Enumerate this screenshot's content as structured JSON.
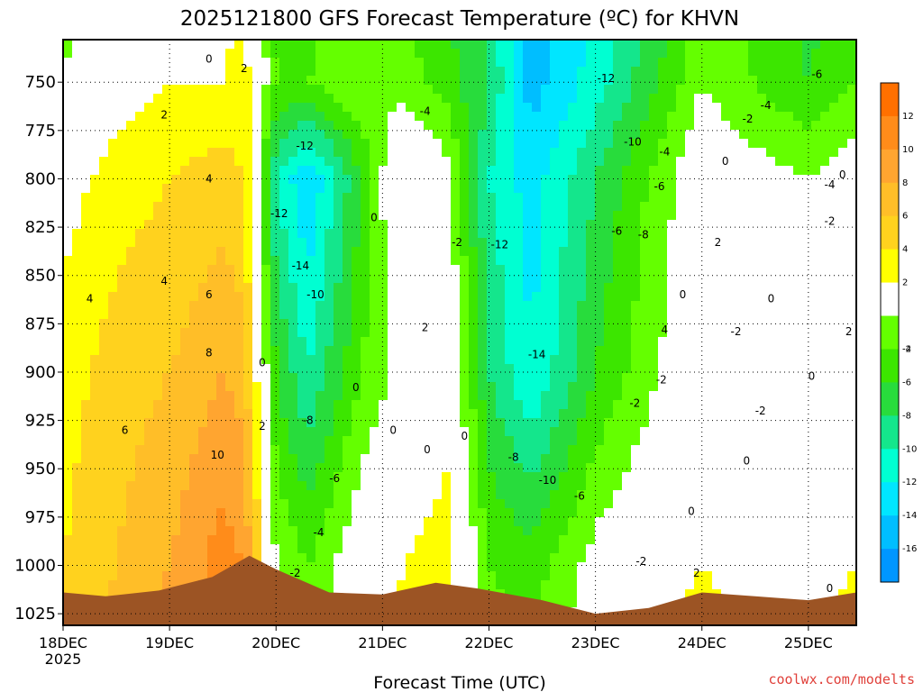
{
  "chart_data": {
    "type": "heatmap",
    "title": "2025121800 GFS Forecast Temperature (ºC) for KHVN",
    "xlabel": "Forecast Time (UTC)",
    "ylabel": "",
    "credit": "coolwx.com/modelts",
    "x_ticks": [
      {
        "label": "18DEC",
        "sub": "2025",
        "day": 0
      },
      {
        "label": "19DEC",
        "sub": "",
        "day": 1
      },
      {
        "label": "20DEC",
        "sub": "",
        "day": 2
      },
      {
        "label": "21DEC",
        "sub": "",
        "day": 3
      },
      {
        "label": "22DEC",
        "sub": "",
        "day": 4
      },
      {
        "label": "23DEC",
        "sub": "",
        "day": 5
      },
      {
        "label": "24DEC",
        "sub": "",
        "day": 6
      },
      {
        "label": "25DEC",
        "sub": "",
        "day": 7
      }
    ],
    "xlim_days": [
      0,
      7.45
    ],
    "y_ticks": [
      750,
      775,
      800,
      825,
      850,
      875,
      900,
      925,
      950,
      975,
      1000,
      1025
    ],
    "ylim": [
      728,
      1031
    ],
    "y_inverted": true,
    "colorbar": {
      "labels": [
        12,
        10,
        8,
        6,
        4,
        2,
        -2,
        -4,
        -6,
        -8,
        -10,
        -12,
        -14,
        -16
      ],
      "bands": [
        {
          "lo": 12,
          "hi": 14,
          "color": "#ff7000"
        },
        {
          "lo": 10,
          "hi": 12,
          "color": "#ff8c1a"
        },
        {
          "lo": 8,
          "hi": 10,
          "color": "#ffa530"
        },
        {
          "lo": 6,
          "hi": 8,
          "color": "#ffbe28"
        },
        {
          "lo": 4,
          "hi": 6,
          "color": "#ffd21e"
        },
        {
          "lo": 2,
          "hi": 4,
          "color": "#ffff00"
        },
        {
          "lo": -2,
          "hi": 2,
          "color": "#ffffff"
        },
        {
          "lo": -4,
          "hi": -2,
          "color": "#64ff00"
        },
        {
          "lo": -6,
          "hi": -4,
          "color": "#3ce600"
        },
        {
          "lo": -8,
          "hi": -6,
          "color": "#28dc3c"
        },
        {
          "lo": -10,
          "hi": -8,
          "color": "#14e68c"
        },
        {
          "lo": -12,
          "hi": -10,
          "color": "#00ffd2"
        },
        {
          "lo": -14,
          "hi": -12,
          "color": "#00e6ff"
        },
        {
          "lo": -16,
          "hi": -14,
          "color": "#00beff"
        },
        {
          "lo": -18,
          "hi": -16,
          "color": "#0096ff"
        }
      ]
    },
    "terrain_color": "#9c5424",
    "temperature_profile": [
      {
        "day": 0.0,
        "t1000": 4,
        "t900": 3,
        "t800": 1,
        "t750": -2
      },
      {
        "day": 0.5,
        "t1000": 6,
        "t900": 5,
        "t800": 3,
        "t750": 1
      },
      {
        "day": 1.0,
        "t1000": 8,
        "t900": 6,
        "t800": 4,
        "t750": 2
      },
      {
        "day": 1.5,
        "t1000": 11,
        "t900": 8,
        "t800": 5,
        "t750": 2
      },
      {
        "day": 1.7,
        "t1000": 10,
        "t900": 7,
        "t800": 4,
        "t750": 3
      },
      {
        "day": 2.0,
        "t1000": -2,
        "t900": -6,
        "t800": -10,
        "t750": -4
      },
      {
        "day": 2.3,
        "t1000": -4,
        "t900": -10,
        "t800": -14,
        "t750": -4
      },
      {
        "day": 2.8,
        "t1000": 0,
        "t900": -4,
        "t800": -6,
        "t750": -2
      },
      {
        "day": 3.2,
        "t1000": 2,
        "t900": -1,
        "t800": 2,
        "t750": -3
      },
      {
        "day": 3.6,
        "t1000": 3,
        "t900": 1,
        "t800": -1,
        "t750": -5
      },
      {
        "day": 4.0,
        "t1000": -4,
        "t900": -8,
        "t800": -10,
        "t750": -8
      },
      {
        "day": 4.4,
        "t1000": -5,
        "t900": -12,
        "t800": -13,
        "t750": -15
      },
      {
        "day": 5.0,
        "t1000": -1,
        "t900": -6,
        "t800": -8,
        "t750": -11
      },
      {
        "day": 5.6,
        "t1000": 1,
        "t900": -2,
        "t800": -3,
        "t750": -6
      },
      {
        "day": 6.0,
        "t1000": 2,
        "t900": 0,
        "t800": 0,
        "t750": -2
      },
      {
        "day": 6.5,
        "t1000": 1,
        "t900": -2,
        "t800": -1,
        "t750": -4
      },
      {
        "day": 7.0,
        "t1000": 1,
        "t900": -1,
        "t800": -2,
        "t750": -6
      },
      {
        "day": 7.45,
        "t1000": 2,
        "t900": 0,
        "t800": 0,
        "t750": -4
      }
    ],
    "surface_pressure": [
      {
        "day": 0.0,
        "p": 1014
      },
      {
        "day": 0.4,
        "p": 1016
      },
      {
        "day": 0.9,
        "p": 1013
      },
      {
        "day": 1.4,
        "p": 1006
      },
      {
        "day": 1.75,
        "p": 995
      },
      {
        "day": 2.0,
        "p": 1002
      },
      {
        "day": 2.5,
        "p": 1014
      },
      {
        "day": 3.0,
        "p": 1015
      },
      {
        "day": 3.5,
        "p": 1009
      },
      {
        "day": 3.9,
        "p": 1012
      },
      {
        "day": 4.5,
        "p": 1018
      },
      {
        "day": 5.0,
        "p": 1025
      },
      {
        "day": 5.5,
        "p": 1022
      },
      {
        "day": 6.0,
        "p": 1014
      },
      {
        "day": 6.5,
        "p": 1016
      },
      {
        "day": 7.0,
        "p": 1018
      },
      {
        "day": 7.45,
        "p": 1014
      }
    ],
    "contour_labels": [
      {
        "day": 1.37,
        "p": 738,
        "text": "0"
      },
      {
        "day": 1.7,
        "p": 743,
        "text": "2"
      },
      {
        "day": 0.95,
        "p": 767,
        "text": "2"
      },
      {
        "day": 1.37,
        "p": 800,
        "text": "4"
      },
      {
        "day": 0.95,
        "p": 853,
        "text": "4"
      },
      {
        "day": 1.37,
        "p": 860,
        "text": "6"
      },
      {
        "day": 0.25,
        "p": 862,
        "text": "4"
      },
      {
        "day": 1.37,
        "p": 890,
        "text": "8"
      },
      {
        "day": 0.58,
        "p": 930,
        "text": "6"
      },
      {
        "day": 1.45,
        "p": 943,
        "text": "10"
      },
      {
        "day": 1.87,
        "p": 895,
        "text": "0"
      },
      {
        "day": 1.87,
        "p": 928,
        "text": "2"
      },
      {
        "day": 2.27,
        "p": 783,
        "text": "-12"
      },
      {
        "day": 2.03,
        "p": 818,
        "text": "-12"
      },
      {
        "day": 2.23,
        "p": 845,
        "text": "-14"
      },
      {
        "day": 2.37,
        "p": 860,
        "text": "-10"
      },
      {
        "day": 2.3,
        "p": 925,
        "text": "-8"
      },
      {
        "day": 2.55,
        "p": 955,
        "text": "-6"
      },
      {
        "day": 2.4,
        "p": 983,
        "text": "-4"
      },
      {
        "day": 2.18,
        "p": 1004,
        "text": "-2"
      },
      {
        "day": 3.4,
        "p": 765,
        "text": "-4"
      },
      {
        "day": 2.92,
        "p": 820,
        "text": "0"
      },
      {
        "day": 3.7,
        "p": 833,
        "text": "-2"
      },
      {
        "day": 2.75,
        "p": 908,
        "text": "0"
      },
      {
        "day": 3.1,
        "p": 930,
        "text": "0"
      },
      {
        "day": 3.4,
        "p": 877,
        "text": "2"
      },
      {
        "day": 3.77,
        "p": 933,
        "text": "0"
      },
      {
        "day": 3.42,
        "p": 940,
        "text": "0"
      },
      {
        "day": 4.1,
        "p": 834,
        "text": "-12"
      },
      {
        "day": 4.45,
        "p": 891,
        "text": "-14"
      },
      {
        "day": 4.23,
        "p": 944,
        "text": "-8"
      },
      {
        "day": 4.55,
        "p": 956,
        "text": "-10"
      },
      {
        "day": 4.85,
        "p": 964,
        "text": "-6"
      },
      {
        "day": 5.1,
        "p": 748,
        "text": "-12"
      },
      {
        "day": 5.35,
        "p": 781,
        "text": "-10"
      },
      {
        "day": 5.65,
        "p": 786,
        "text": "-4"
      },
      {
        "day": 5.6,
        "p": 804,
        "text": "-6"
      },
      {
        "day": 5.2,
        "p": 827,
        "text": "-6"
      },
      {
        "day": 5.45,
        "p": 829,
        "text": "-8"
      },
      {
        "day": 5.65,
        "p": 878,
        "text": "4"
      },
      {
        "day": 5.37,
        "p": 916,
        "text": "-2"
      },
      {
        "day": 5.62,
        "p": 904,
        "text": "-2"
      },
      {
        "day": 6.22,
        "p": 791,
        "text": "0"
      },
      {
        "day": 6.43,
        "p": 769,
        "text": "-2"
      },
      {
        "day": 6.6,
        "p": 762,
        "text": "-4"
      },
      {
        "day": 6.15,
        "p": 833,
        "text": "2"
      },
      {
        "day": 5.82,
        "p": 860,
        "text": "0"
      },
      {
        "day": 6.32,
        "p": 879,
        "text": "-2"
      },
      {
        "day": 6.65,
        "p": 862,
        "text": "0"
      },
      {
        "day": 6.55,
        "p": 920,
        "text": "-2"
      },
      {
        "day": 6.42,
        "p": 946,
        "text": "0"
      },
      {
        "day": 5.9,
        "p": 972,
        "text": "0"
      },
      {
        "day": 5.43,
        "p": 998,
        "text": "-2"
      },
      {
        "day": 5.95,
        "p": 1004,
        "text": "2"
      },
      {
        "day": 7.08,
        "p": 746,
        "text": "-6"
      },
      {
        "day": 7.32,
        "p": 798,
        "text": "0"
      },
      {
        "day": 7.2,
        "p": 803,
        "text": "-4"
      },
      {
        "day": 7.2,
        "p": 822,
        "text": "-2"
      },
      {
        "day": 7.03,
        "p": 902,
        "text": "0"
      },
      {
        "day": 7.38,
        "p": 879,
        "text": "2"
      },
      {
        "day": 7.2,
        "p": 1012,
        "text": "0"
      }
    ]
  }
}
